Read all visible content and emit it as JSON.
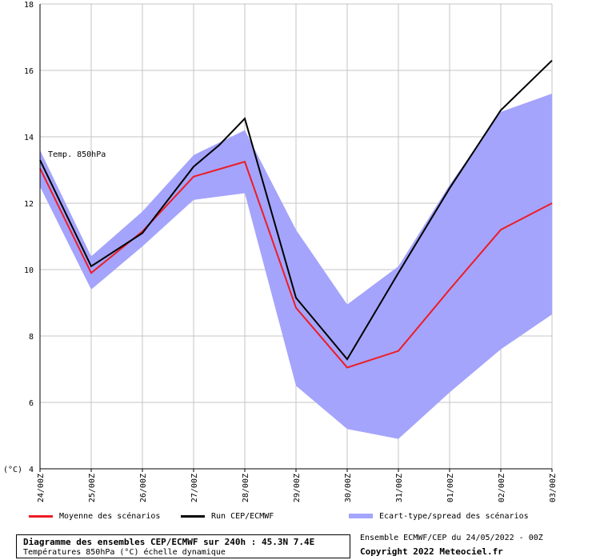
{
  "chart_data": {
    "type": "line",
    "annotation": "Temp. 850hPa",
    "yunit": "(°C)",
    "ylim": [
      4,
      18
    ],
    "yticks": [
      4,
      6,
      8,
      10,
      12,
      14,
      16,
      18
    ],
    "grid": true,
    "categories": [
      "24/00Z",
      "25/00Z",
      "26/00Z",
      "27/00Z",
      "28/00Z",
      "29/00Z",
      "30/00Z",
      "31/00Z",
      "01/00Z",
      "02/00Z",
      "03/00Z"
    ],
    "series": [
      {
        "name": "Moyenne des scénarios",
        "color": "#ee1c24",
        "x": [
          0,
          1,
          2,
          3,
          4,
          5,
          6,
          7,
          8,
          9,
          10
        ],
        "values": [
          13.05,
          9.9,
          11.15,
          12.8,
          13.25,
          8.85,
          7.05,
          7.55,
          9.4,
          11.2,
          12.0
        ]
      },
      {
        "name": "Run CEP/ECMWF",
        "color": "#000000",
        "x": [
          0,
          1,
          2,
          3,
          3.5,
          4,
          5,
          6,
          7,
          8,
          9,
          10
        ],
        "values": [
          13.3,
          10.1,
          11.1,
          13.1,
          13.75,
          14.55,
          9.15,
          7.3,
          9.9,
          12.45,
          14.8,
          16.3
        ]
      }
    ],
    "spread": {
      "name": "Ecart-type/spread des scénarios",
      "color": "#a4a4fc",
      "upper": [
        13.6,
        10.4,
        11.75,
        13.45,
        14.2,
        11.2,
        8.95,
        10.1,
        12.55,
        14.75,
        15.3
      ],
      "lower": [
        12.5,
        9.4,
        10.7,
        12.1,
        12.3,
        6.5,
        5.2,
        4.9,
        6.3,
        7.6,
        8.65
      ]
    }
  },
  "legend": {
    "mean_label": "Moyenne des scénarios",
    "run_label": "Run CEP/ECMWF",
    "spread_label": "Ecart-type/spread des scénarios"
  },
  "footer": {
    "title": "Diagramme des ensembles CEP/ECMWF sur 240h : 45.3N 7.4E",
    "subtitle": "Températures 850hPa (°C) échelle dynamique",
    "ensemble": "Ensemble ECMWF/CEP du 24/05/2022 - 00Z",
    "copyright": "Copyright 2022 Meteociel.fr"
  }
}
